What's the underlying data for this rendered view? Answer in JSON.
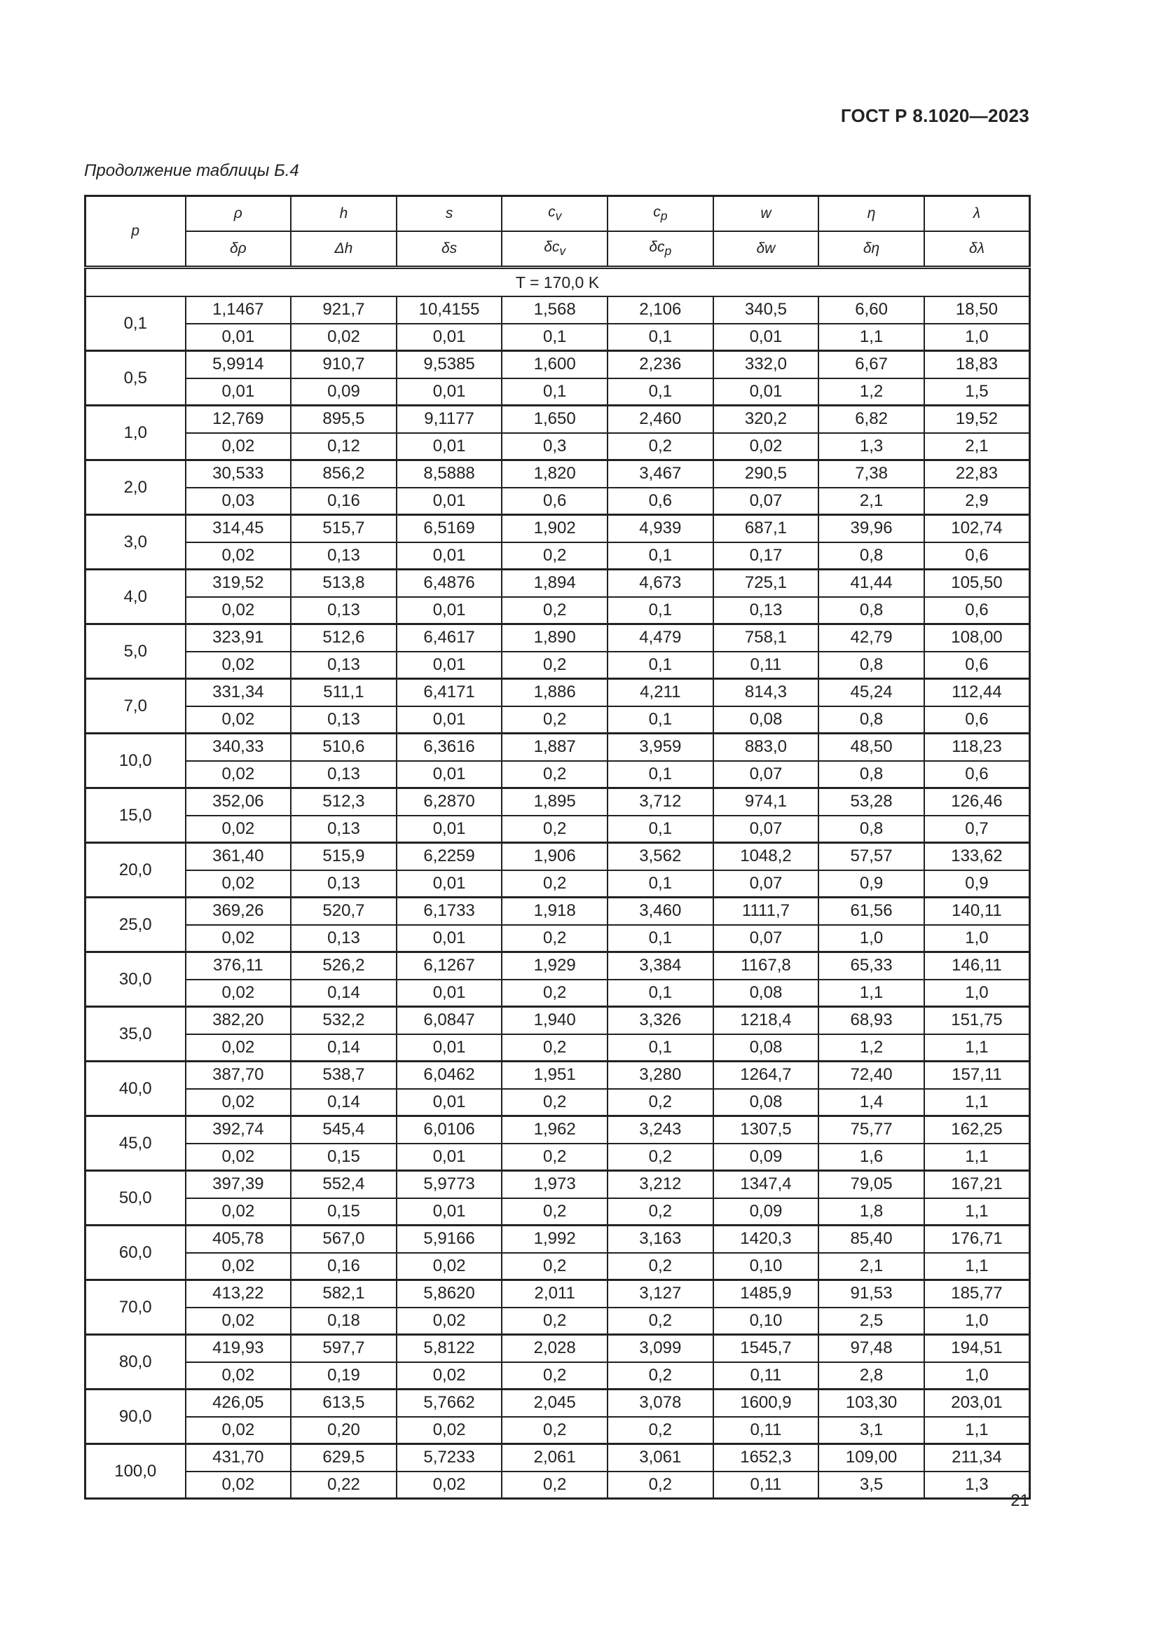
{
  "header": {
    "doc_id": "ГОСТ Р 8.1020—2023"
  },
  "caption": "Продолжение таблицы Б.4",
  "table": {
    "p_label": "p",
    "columns": [
      {
        "top": "ρ",
        "bottom": "δρ"
      },
      {
        "top": "h",
        "bottom": "Δh"
      },
      {
        "top": "s",
        "bottom": "δs"
      },
      {
        "top": "c",
        "top_sub": "v",
        "bottom": "δc",
        "bottom_sub": "v"
      },
      {
        "top": "c",
        "top_sub": "p",
        "bottom": "δc",
        "bottom_sub": "p"
      },
      {
        "top": "w",
        "bottom": "δw"
      },
      {
        "top": "η",
        "bottom": "δη"
      },
      {
        "top": "λ",
        "bottom": "δλ"
      }
    ],
    "temperature_row": "T = 170,0 K",
    "rows": [
      {
        "p": "0,1",
        "values": [
          "1,1467",
          "921,7",
          "10,4155",
          "1,568",
          "2,106",
          "340,5",
          "6,60",
          "18,50"
        ],
        "errors": [
          "0,01",
          "0,02",
          "0,01",
          "0,1",
          "0,1",
          "0,01",
          "1,1",
          "1,0"
        ]
      },
      {
        "p": "0,5",
        "values": [
          "5,9914",
          "910,7",
          "9,5385",
          "1,600",
          "2,236",
          "332,0",
          "6,67",
          "18,83"
        ],
        "errors": [
          "0,01",
          "0,09",
          "0,01",
          "0,1",
          "0,1",
          "0,01",
          "1,2",
          "1,5"
        ]
      },
      {
        "p": "1,0",
        "values": [
          "12,769",
          "895,5",
          "9,1177",
          "1,650",
          "2,460",
          "320,2",
          "6,82",
          "19,52"
        ],
        "errors": [
          "0,02",
          "0,12",
          "0,01",
          "0,3",
          "0,2",
          "0,02",
          "1,3",
          "2,1"
        ]
      },
      {
        "p": "2,0",
        "values": [
          "30,533",
          "856,2",
          "8,5888",
          "1,820",
          "3,467",
          "290,5",
          "7,38",
          "22,83"
        ],
        "errors": [
          "0,03",
          "0,16",
          "0,01",
          "0,6",
          "0,6",
          "0,07",
          "2,1",
          "2,9"
        ]
      },
      {
        "p": "3,0",
        "values": [
          "314,45",
          "515,7",
          "6,5169",
          "1,902",
          "4,939",
          "687,1",
          "39,96",
          "102,74"
        ],
        "errors": [
          "0,02",
          "0,13",
          "0,01",
          "0,2",
          "0,1",
          "0,17",
          "0,8",
          "0,6"
        ]
      },
      {
        "p": "4,0",
        "values": [
          "319,52",
          "513,8",
          "6,4876",
          "1,894",
          "4,673",
          "725,1",
          "41,44",
          "105,50"
        ],
        "errors": [
          "0,02",
          "0,13",
          "0,01",
          "0,2",
          "0,1",
          "0,13",
          "0,8",
          "0,6"
        ]
      },
      {
        "p": "5,0",
        "values": [
          "323,91",
          "512,6",
          "6,4617",
          "1,890",
          "4,479",
          "758,1",
          "42,79",
          "108,00"
        ],
        "errors": [
          "0,02",
          "0,13",
          "0,01",
          "0,2",
          "0,1",
          "0,11",
          "0,8",
          "0,6"
        ]
      },
      {
        "p": "7,0",
        "values": [
          "331,34",
          "511,1",
          "6,4171",
          "1,886",
          "4,211",
          "814,3",
          "45,24",
          "112,44"
        ],
        "errors": [
          "0,02",
          "0,13",
          "0,01",
          "0,2",
          "0,1",
          "0,08",
          "0,8",
          "0,6"
        ]
      },
      {
        "p": "10,0",
        "values": [
          "340,33",
          "510,6",
          "6,3616",
          "1,887",
          "3,959",
          "883,0",
          "48,50",
          "118,23"
        ],
        "errors": [
          "0,02",
          "0,13",
          "0,01",
          "0,2",
          "0,1",
          "0,07",
          "0,8",
          "0,6"
        ]
      },
      {
        "p": "15,0",
        "values": [
          "352,06",
          "512,3",
          "6,2870",
          "1,895",
          "3,712",
          "974,1",
          "53,28",
          "126,46"
        ],
        "errors": [
          "0,02",
          "0,13",
          "0,01",
          "0,2",
          "0,1",
          "0,07",
          "0,8",
          "0,7"
        ]
      },
      {
        "p": "20,0",
        "values": [
          "361,40",
          "515,9",
          "6,2259",
          "1,906",
          "3,562",
          "1048,2",
          "57,57",
          "133,62"
        ],
        "errors": [
          "0,02",
          "0,13",
          "0,01",
          "0,2",
          "0,1",
          "0,07",
          "0,9",
          "0,9"
        ]
      },
      {
        "p": "25,0",
        "values": [
          "369,26",
          "520,7",
          "6,1733",
          "1,918",
          "3,460",
          "1111,7",
          "61,56",
          "140,11"
        ],
        "errors": [
          "0,02",
          "0,13",
          "0,01",
          "0,2",
          "0,1",
          "0,07",
          "1,0",
          "1,0"
        ]
      },
      {
        "p": "30,0",
        "values": [
          "376,11",
          "526,2",
          "6,1267",
          "1,929",
          "3,384",
          "1167,8",
          "65,33",
          "146,11"
        ],
        "errors": [
          "0,02",
          "0,14",
          "0,01",
          "0,2",
          "0,1",
          "0,08",
          "1,1",
          "1,0"
        ]
      },
      {
        "p": "35,0",
        "values": [
          "382,20",
          "532,2",
          "6,0847",
          "1,940",
          "3,326",
          "1218,4",
          "68,93",
          "151,75"
        ],
        "errors": [
          "0,02",
          "0,14",
          "0,01",
          "0,2",
          "0,1",
          "0,08",
          "1,2",
          "1,1"
        ]
      },
      {
        "p": "40,0",
        "values": [
          "387,70",
          "538,7",
          "6,0462",
          "1,951",
          "3,280",
          "1264,7",
          "72,40",
          "157,11"
        ],
        "errors": [
          "0,02",
          "0,14",
          "0,01",
          "0,2",
          "0,2",
          "0,08",
          "1,4",
          "1,1"
        ]
      },
      {
        "p": "45,0",
        "values": [
          "392,74",
          "545,4",
          "6,0106",
          "1,962",
          "3,243",
          "1307,5",
          "75,77",
          "162,25"
        ],
        "errors": [
          "0,02",
          "0,15",
          "0,01",
          "0,2",
          "0,2",
          "0,09",
          "1,6",
          "1,1"
        ]
      },
      {
        "p": "50,0",
        "values": [
          "397,39",
          "552,4",
          "5,9773",
          "1,973",
          "3,212",
          "1347,4",
          "79,05",
          "167,21"
        ],
        "errors": [
          "0,02",
          "0,15",
          "0,01",
          "0,2",
          "0,2",
          "0,09",
          "1,8",
          "1,1"
        ]
      },
      {
        "p": "60,0",
        "values": [
          "405,78",
          "567,0",
          "5,9166",
          "1,992",
          "3,163",
          "1420,3",
          "85,40",
          "176,71"
        ],
        "errors": [
          "0,02",
          "0,16",
          "0,02",
          "0,2",
          "0,2",
          "0,10",
          "2,1",
          "1,1"
        ]
      },
      {
        "p": "70,0",
        "values": [
          "413,22",
          "582,1",
          "5,8620",
          "2,011",
          "3,127",
          "1485,9",
          "91,53",
          "185,77"
        ],
        "errors": [
          "0,02",
          "0,18",
          "0,02",
          "0,2",
          "0,2",
          "0,10",
          "2,5",
          "1,0"
        ]
      },
      {
        "p": "80,0",
        "values": [
          "419,93",
          "597,7",
          "5,8122",
          "2,028",
          "3,099",
          "1545,7",
          "97,48",
          "194,51"
        ],
        "errors": [
          "0,02",
          "0,19",
          "0,02",
          "0,2",
          "0,2",
          "0,11",
          "2,8",
          "1,0"
        ]
      },
      {
        "p": "90,0",
        "values": [
          "426,05",
          "613,5",
          "5,7662",
          "2,045",
          "3,078",
          "1600,9",
          "103,30",
          "203,01"
        ],
        "errors": [
          "0,02",
          "0,20",
          "0,02",
          "0,2",
          "0,2",
          "0,11",
          "3,1",
          "1,1"
        ]
      },
      {
        "p": "100,0",
        "values": [
          "431,70",
          "629,5",
          "5,7233",
          "2,061",
          "3,061",
          "1652,3",
          "109,00",
          "211,34"
        ],
        "errors": [
          "0,02",
          "0,22",
          "0,02",
          "0,2",
          "0,2",
          "0,11",
          "3,5",
          "1,3"
        ]
      }
    ]
  },
  "footer": {
    "page_number": "21"
  }
}
